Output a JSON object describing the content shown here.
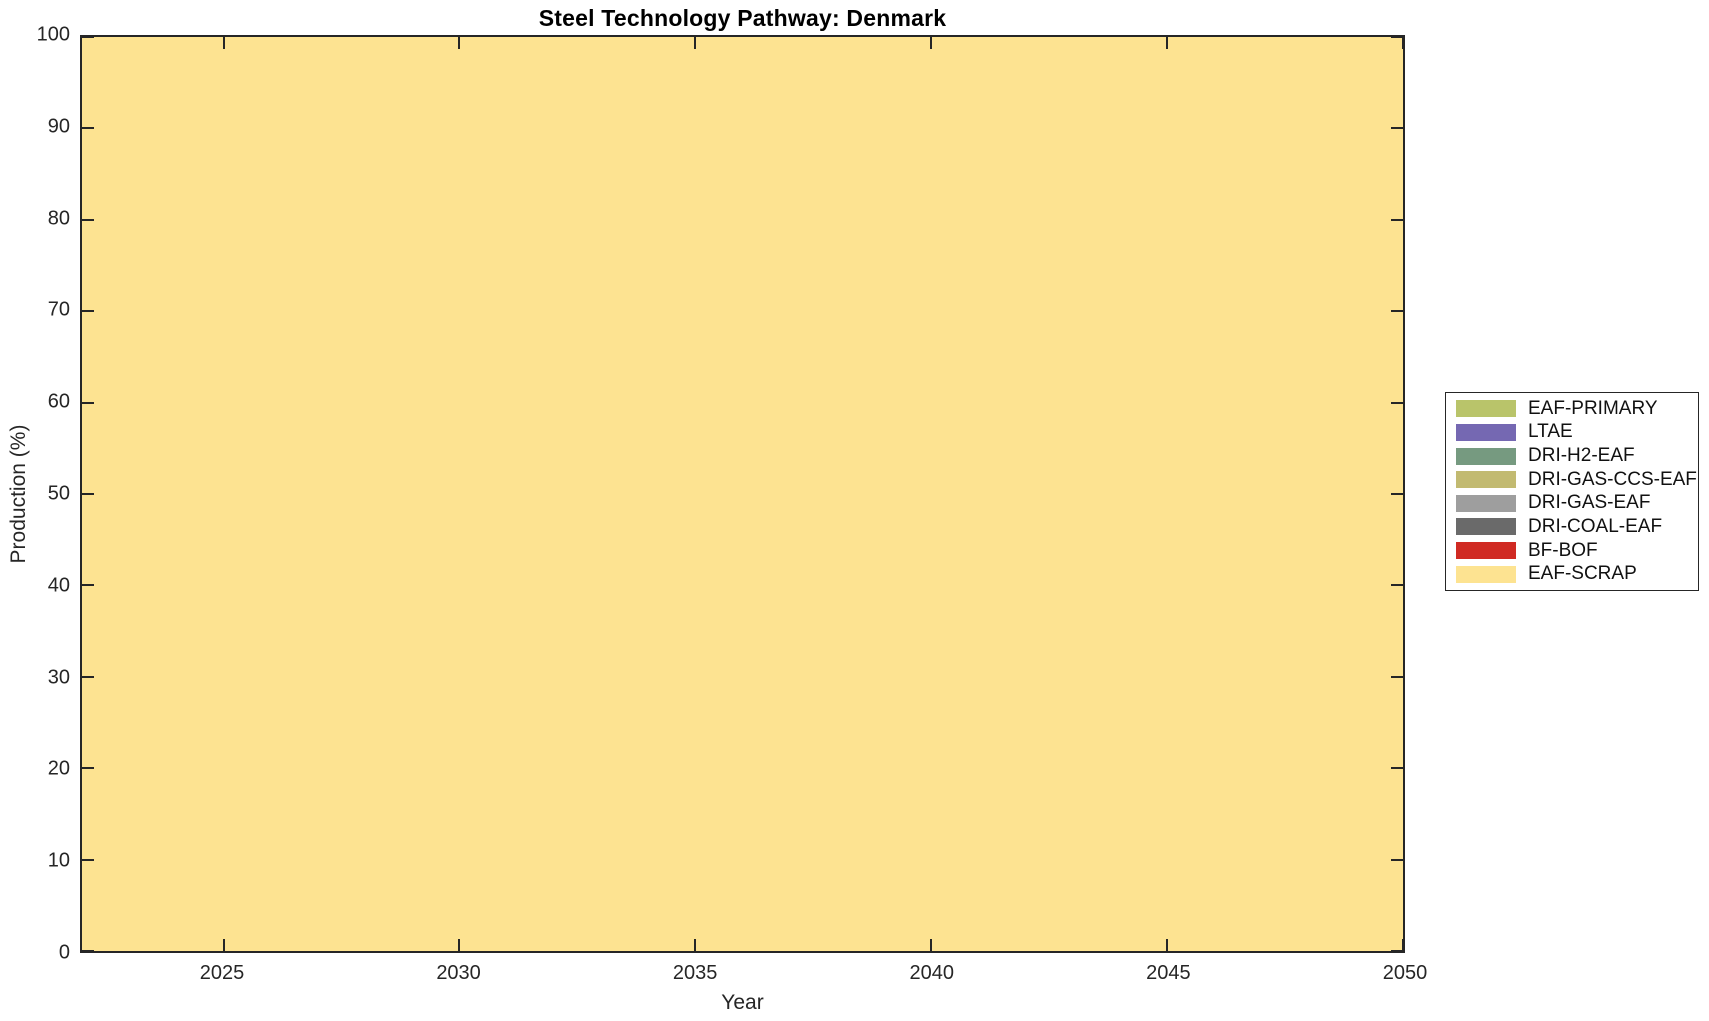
{
  "chart_data": {
    "type": "area",
    "stacked": true,
    "title": "Steel Technology Pathway: Denmark",
    "xlabel": "Year",
    "ylabel": "Production (%)",
    "xlim": [
      2022,
      2050
    ],
    "ylim": [
      0,
      100
    ],
    "xticks": [
      2025,
      2030,
      2035,
      2040,
      2045,
      2050
    ],
    "yticks": [
      0,
      10,
      20,
      30,
      40,
      50,
      60,
      70,
      80,
      90,
      100
    ],
    "x": [
      2022,
      2025,
      2030,
      2035,
      2040,
      2045,
      2050
    ],
    "grid": false,
    "legend_position": "outside-right",
    "series": [
      {
        "label": "EAF-PRIMARY",
        "color": "#b9c46a",
        "values": [
          0,
          0,
          0,
          0,
          0,
          0,
          0
        ]
      },
      {
        "label": "LTAE",
        "color": "#7568b2",
        "values": [
          0,
          0,
          0,
          0,
          0,
          0,
          0
        ]
      },
      {
        "label": "DRI-H2-EAF",
        "color": "#769a80",
        "values": [
          0,
          0,
          0,
          0,
          0,
          0,
          0
        ]
      },
      {
        "label": "DRI-GAS-CCS-EAF",
        "color": "#c2ba71",
        "values": [
          0,
          0,
          0,
          0,
          0,
          0,
          0
        ]
      },
      {
        "label": "DRI-GAS-EAF",
        "color": "#9e9e9e",
        "values": [
          0,
          0,
          0,
          0,
          0,
          0,
          0
        ]
      },
      {
        "label": "DRI-COAL-EAF",
        "color": "#6a6a6a",
        "values": [
          0,
          0,
          0,
          0,
          0,
          0,
          0
        ]
      },
      {
        "label": "BF-BOF",
        "color": "#d02a23",
        "values": [
          0,
          0,
          0,
          0,
          0,
          0,
          0
        ]
      },
      {
        "label": "EAF-SCRAP",
        "color": "#fde391",
        "values": [
          100,
          100,
          100,
          100,
          100,
          100,
          100
        ]
      }
    ],
    "axis_color": "#262626",
    "title_color": "#000000",
    "background_color": "#ffffff"
  }
}
